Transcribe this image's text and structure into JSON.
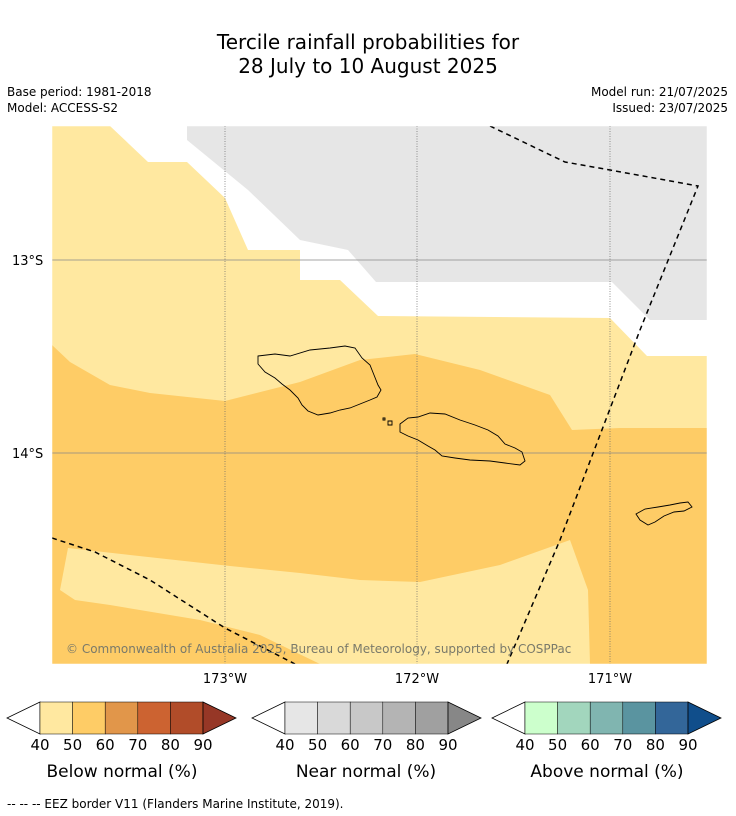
{
  "title_line1": "Tercile rainfall probabilities for",
  "title_line2": "28 July to 10 August 2025",
  "base_period": "Base period: 1981-2018",
  "model": "Model: ACCESS-S2",
  "model_run": "Model run: 21/07/2025",
  "issued": "Issued: 23/07/2025",
  "lat_labels": [
    "13°S",
    "14°S"
  ],
  "lon_labels": [
    "173°W",
    "172°W",
    "171°W"
  ],
  "copyright": "© Commonwealth of Australia 2025, Bureau of Meteorology, supported by COSPPac",
  "legends": [
    {
      "title": "Below normal (%)",
      "ticks": [
        "40",
        "50",
        "60",
        "70",
        "80",
        "90"
      ],
      "colors": [
        "#ffffff",
        "#ffe8a0",
        "#fecc66",
        "#e1964a",
        "#cc6331",
        "#b14c29",
        "#963726"
      ]
    },
    {
      "title": "Near normal (%)",
      "ticks": [
        "40",
        "50",
        "60",
        "70",
        "80",
        "90"
      ],
      "colors": [
        "#ffffff",
        "#e6e6e6",
        "#d9d9d9",
        "#c8c8c8",
        "#b4b4b4",
        "#a0a0a0",
        "#878787"
      ]
    },
    {
      "title": "Above normal (%)",
      "ticks": [
        "40",
        "50",
        "60",
        "70",
        "80",
        "90"
      ],
      "colors": [
        "#ffffff",
        "#ccffcc",
        "#a2d6bd",
        "#80b5b0",
        "#5a94a0",
        "#336699",
        "#104e8b"
      ]
    }
  ],
  "footer": "--  --  -- EEZ border V11 (Flanders Marine Institute, 2019)."
}
